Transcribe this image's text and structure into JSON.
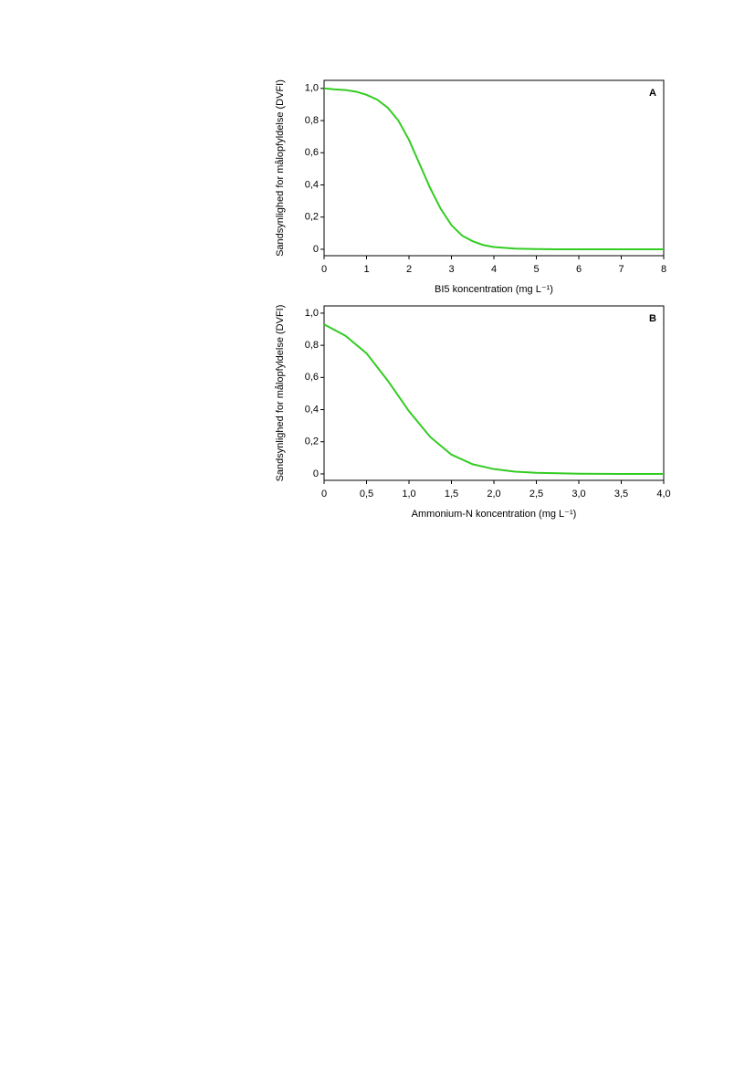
{
  "chart_data": [
    {
      "type": "line",
      "annotation": "A",
      "x_label": "BI5 koncentration (mg L⁻¹)",
      "y_label": "Sandsynlighed for målopfyldelse (DVFI)",
      "x": [
        0,
        0.25,
        0.5,
        0.75,
        1,
        1.25,
        1.5,
        1.75,
        2,
        2.25,
        2.5,
        2.75,
        3,
        3.25,
        3.5,
        3.75,
        4,
        4.5,
        5,
        5.5,
        6,
        7,
        8
      ],
      "series": [
        {
          "color": "#33cc22",
          "values": [
            1.0,
            0.994,
            0.99,
            0.98,
            0.96,
            0.93,
            0.88,
            0.8,
            0.68,
            0.53,
            0.38,
            0.25,
            0.15,
            0.085,
            0.05,
            0.026,
            0.014,
            0.004,
            0.001,
            0,
            0,
            0,
            0
          ]
        }
      ],
      "xlim": [
        0,
        8
      ],
      "ylim": [
        -0.04,
        1.05
      ],
      "xticks": [
        0,
        1,
        2,
        3,
        4,
        5,
        6,
        7,
        8
      ],
      "yticks": [
        0,
        {
          "value": 0.2,
          "label": "0,2"
        },
        {
          "value": 0.4,
          "label": "0,4"
        },
        {
          "value": 0.6,
          "label": "0,6"
        },
        {
          "value": 0.8,
          "label": "0,8"
        },
        {
          "value": 1,
          "label": "1,0"
        }
      ]
    },
    {
      "type": "line",
      "annotation": "B",
      "x_label": "Ammonium-N koncentration (mg L⁻¹)",
      "y_label": "Sandsynlighed for målopfyldelse (DVFI)",
      "x": [
        0,
        0.25,
        0.5,
        0.75,
        1,
        1.25,
        1.5,
        1.75,
        2,
        2.25,
        2.5,
        3,
        3.5,
        4
      ],
      "series": [
        {
          "color": "#33cc22",
          "values": [
            0.93,
            0.86,
            0.75,
            0.58,
            0.39,
            0.23,
            0.12,
            0.06,
            0.03,
            0.014,
            0.007,
            0.001,
            0,
            0
          ]
        }
      ],
      "xlim": [
        0,
        4
      ],
      "ylim": [
        -0.04,
        1.045
      ],
      "xticks": [
        0,
        {
          "value": 0.5,
          "label": "0,5"
        },
        {
          "value": 1,
          "label": "1,0"
        },
        {
          "value": 1.5,
          "label": "1,5"
        },
        {
          "value": 2,
          "label": "2,0"
        },
        {
          "value": 2.5,
          "label": "2,5"
        },
        {
          "value": 3,
          "label": "3,0"
        },
        {
          "value": 3.5,
          "label": "3,5"
        },
        {
          "value": 4,
          "label": "4,0"
        }
      ],
      "yticks": [
        0,
        {
          "value": 0.2,
          "label": "0,2"
        },
        {
          "value": 0.4,
          "label": "0,4"
        },
        {
          "value": 0.6,
          "label": "0,6"
        },
        {
          "value": 0.8,
          "label": "0,8"
        },
        {
          "value": 1,
          "label": "1,0"
        }
      ]
    }
  ]
}
